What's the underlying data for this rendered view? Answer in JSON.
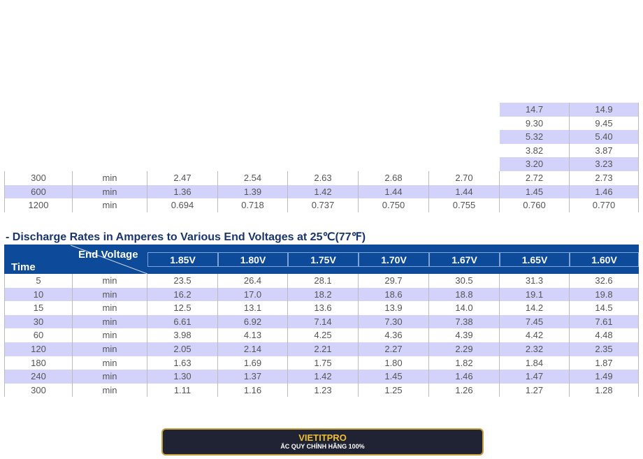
{
  "top_table": {
    "partial_rows": [
      [
        "14.7",
        "14.9"
      ],
      [
        "9.30",
        "9.45"
      ],
      [
        "5.32",
        "5.40"
      ],
      [
        "3.82",
        "3.87"
      ],
      [
        "3.20",
        "3.23"
      ]
    ],
    "rows": [
      [
        "300",
        "min",
        "2.47",
        "2.54",
        "2.63",
        "2.68",
        "2.70",
        "2.72",
        "2.73"
      ],
      [
        "600",
        "min",
        "1.36",
        "1.39",
        "1.42",
        "1.44",
        "1.44",
        "1.45",
        "1.46"
      ],
      [
        "1200",
        "min",
        "0.694",
        "0.718",
        "0.737",
        "0.750",
        "0.755",
        "0.760",
        "0.770"
      ]
    ]
  },
  "table": {
    "title": "- Discharge Rates in Amperes to Various End Voltages at 25℃(77℉)",
    "corner_top": "End Voltage",
    "corner_bottom": "Time",
    "columns": [
      "1.85V",
      "1.80V",
      "1.75V",
      "1.70V",
      "1.67V",
      "1.65V",
      "1.60V"
    ],
    "rows": [
      [
        "5",
        "min",
        "23.5",
        "26.4",
        "28.1",
        "29.7",
        "30.5",
        "31.3",
        "32.6"
      ],
      [
        "10",
        "min",
        "16.2",
        "17.0",
        "18.2",
        "18.6",
        "18.8",
        "19.1",
        "19.8"
      ],
      [
        "15",
        "min",
        "12.5",
        "13.1",
        "13.6",
        "13.9",
        "14.0",
        "14.2",
        "14.5"
      ],
      [
        "30",
        "min",
        "6.61",
        "6.92",
        "7.14",
        "7.30",
        "7.38",
        "7.45",
        "7.61"
      ],
      [
        "60",
        "min",
        "3.98",
        "4.13",
        "4.25",
        "4.36",
        "4.39",
        "4.42",
        "4.48"
      ],
      [
        "120",
        "min",
        "2.05",
        "2.14",
        "2.21",
        "2.27",
        "2.29",
        "2.32",
        "2.35"
      ],
      [
        "180",
        "min",
        "1.63",
        "1.69",
        "1.75",
        "1.80",
        "1.82",
        "1.84",
        "1.87"
      ],
      [
        "240",
        "min",
        "1.30",
        "1.37",
        "1.42",
        "1.45",
        "1.46",
        "1.47",
        "1.49"
      ],
      [
        "300",
        "min",
        "1.11",
        "1.16",
        "1.23",
        "1.25",
        "1.26",
        "1.27",
        "1.28"
      ]
    ]
  },
  "banner": {
    "brand": "VIETITPRO",
    "tagline": "ẮC QUY CHÍNH HÃNG 100%"
  }
}
